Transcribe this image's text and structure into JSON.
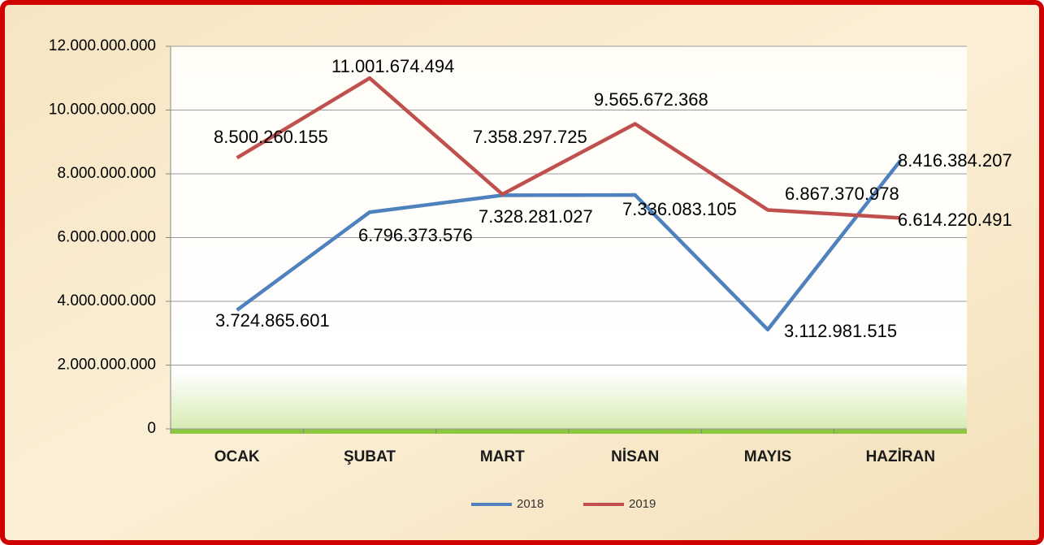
{
  "chart_data": {
    "type": "line",
    "categories": [
      "OCAK",
      "ŞUBAT",
      "MART",
      "NİSAN",
      "MAYIS",
      "HAZİRAN"
    ],
    "series": [
      {
        "name": "2018",
        "color": "#4f81bd",
        "values": [
          3724865601,
          6796373576,
          7328281027,
          7336083105,
          3112981515,
          8416384207
        ],
        "value_labels": [
          "3.724.865.601",
          "6.796.373.576",
          "7.328.281.027",
          "7.336.083.105",
          "3.112.981.515",
          "8.416.384.207"
        ]
      },
      {
        "name": "2019",
        "color": "#c0504d",
        "values": [
          8500260155,
          11001674494,
          7358297725,
          9565672368,
          6867370978,
          6614220491
        ],
        "value_labels": [
          "8.500.260.155",
          "11.001.674.494",
          "7.358.297.725",
          "9.565.672.368",
          "6.867.370.978",
          "6.614.220.491"
        ]
      }
    ],
    "ylim": [
      0,
      12000000000
    ],
    "yticks": [
      0,
      {
        "value": 2000000000,
        "label": "2.000.000.000"
      },
      {
        "value": 4000000000,
        "label": "4.000.000.000"
      },
      {
        "value": 6000000000,
        "label": "6.000.000.000"
      },
      {
        "value": 8000000000,
        "label": "8.000.000.000"
      },
      {
        "value": 10000000000,
        "label": "10.000.000.000"
      },
      {
        "value": 12000000000,
        "label": "12.000.000.000"
      }
    ],
    "grid": true,
    "legend": "bottom"
  }
}
